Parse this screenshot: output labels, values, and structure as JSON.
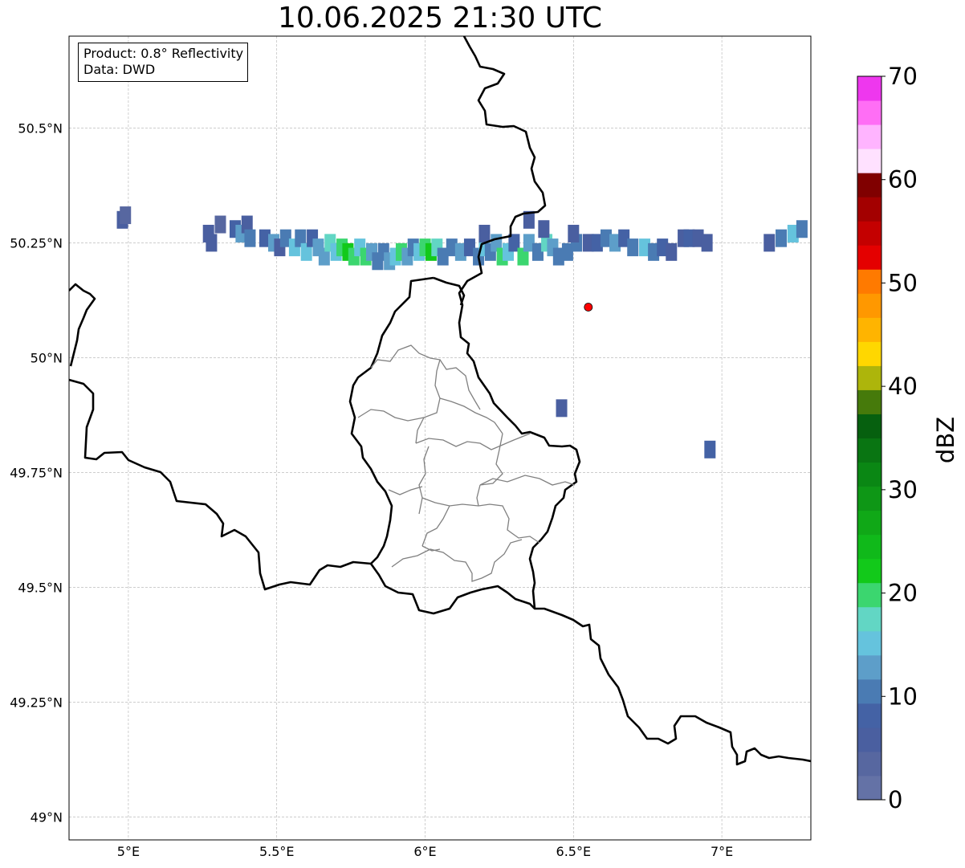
{
  "title": "10.06.2025 21:30 UTC",
  "info_box": {
    "product_line": "Product: 0.8° Reflectivity",
    "data_line": "Data: DWD"
  },
  "map": {
    "lon_range": [
      4.8,
      7.3
    ],
    "lat_range": [
      48.95,
      50.7
    ],
    "lon_ticks": [
      {
        "value": 5.0,
        "label": "5°E"
      },
      {
        "value": 5.5,
        "label": "5.5°E"
      },
      {
        "value": 6.0,
        "label": "6°E"
      },
      {
        "value": 6.5,
        "label": "6.5°E"
      },
      {
        "value": 7.0,
        "label": "7°E"
      }
    ],
    "lat_ticks": [
      {
        "value": 50.5,
        "label": "50.5°N"
      },
      {
        "value": 50.25,
        "label": "50.25°N"
      },
      {
        "value": 50.0,
        "label": "50°N"
      },
      {
        "value": 49.75,
        "label": "49.75°N"
      },
      {
        "value": 49.5,
        "label": "49.5°N"
      },
      {
        "value": 49.25,
        "label": "49.25°N"
      },
      {
        "value": 49.0,
        "label": "49°N"
      }
    ],
    "grid": true,
    "marker": {
      "lon": 6.55,
      "lat": 50.11,
      "color": "#ff0000"
    },
    "borders": {
      "color": "#000000"
    },
    "admin_borders": {
      "color": "#808080"
    }
  },
  "colorbar": {
    "label": "dBZ",
    "min": 0,
    "max": 70,
    "step": 2.5,
    "tick_labels": [
      "0",
      "10",
      "20",
      "30",
      "40",
      "50",
      "60",
      "70"
    ],
    "colors": [
      "#6472a6",
      "#5767a0",
      "#4a5fa0",
      "#4462a5",
      "#4a7bb3",
      "#5d9ec9",
      "#65c3dd",
      "#62d6c4",
      "#3bd66f",
      "#12c91a",
      "#10b91a",
      "#10a817",
      "#0e9716",
      "#0a8714",
      "#097512",
      "#06600f",
      "#467a0b",
      "#adb50b",
      "#ffd700",
      "#ffb400",
      "#ff9800",
      "#ff7a00",
      "#e40000",
      "#c40000",
      "#a30000",
      "#800000",
      "#ffe1ff",
      "#ffb4ff",
      "#ff6ef5",
      "#ee37ee"
    ]
  },
  "radar_data": {
    "description_units": "dBZ",
    "cells": [
      [
        4.98,
        50.3,
        5
      ],
      [
        4.99,
        50.31,
        3
      ],
      [
        5.27,
        50.27,
        5
      ],
      [
        5.28,
        50.25,
        6
      ],
      [
        5.31,
        50.29,
        4
      ],
      [
        5.36,
        50.28,
        9
      ],
      [
        5.38,
        50.27,
        14
      ],
      [
        5.4,
        50.29,
        6
      ],
      [
        5.41,
        50.26,
        12
      ],
      [
        5.46,
        50.26,
        8
      ],
      [
        5.49,
        50.25,
        13
      ],
      [
        5.51,
        50.24,
        7
      ],
      [
        5.53,
        50.26,
        11
      ],
      [
        5.56,
        50.24,
        15
      ],
      [
        5.58,
        50.26,
        10
      ],
      [
        5.6,
        50.23,
        16
      ],
      [
        5.62,
        50.26,
        9
      ],
      [
        5.64,
        50.24,
        14
      ],
      [
        5.66,
        50.22,
        13
      ],
      [
        5.68,
        50.25,
        18
      ],
      [
        5.7,
        50.23,
        17
      ],
      [
        5.72,
        50.24,
        22
      ],
      [
        5.74,
        50.23,
        24
      ],
      [
        5.76,
        50.22,
        20
      ],
      [
        5.78,
        50.24,
        16
      ],
      [
        5.8,
        50.22,
        21
      ],
      [
        5.82,
        50.23,
        14
      ],
      [
        5.84,
        50.21,
        12
      ],
      [
        5.86,
        50.23,
        10
      ],
      [
        5.88,
        50.21,
        14
      ],
      [
        5.9,
        50.22,
        17
      ],
      [
        5.92,
        50.23,
        21
      ],
      [
        5.94,
        50.22,
        13
      ],
      [
        5.96,
        50.24,
        11
      ],
      [
        5.98,
        50.23,
        15
      ],
      [
        6.0,
        50.24,
        22
      ],
      [
        6.02,
        50.23,
        24
      ],
      [
        6.04,
        50.24,
        18
      ],
      [
        6.06,
        50.22,
        12
      ],
      [
        6.09,
        50.24,
        10
      ],
      [
        6.12,
        50.23,
        14
      ],
      [
        6.15,
        50.24,
        9
      ],
      [
        6.18,
        50.22,
        12
      ],
      [
        6.2,
        50.24,
        16
      ],
      [
        6.22,
        50.23,
        11
      ],
      [
        6.24,
        50.25,
        13
      ],
      [
        6.26,
        50.22,
        21
      ],
      [
        6.28,
        50.23,
        15
      ],
      [
        6.3,
        50.25,
        9
      ],
      [
        6.33,
        50.22,
        22
      ],
      [
        6.35,
        50.25,
        14
      ],
      [
        6.38,
        50.23,
        11
      ],
      [
        6.41,
        50.25,
        18
      ],
      [
        6.43,
        50.24,
        13
      ],
      [
        6.45,
        50.22,
        10
      ],
      [
        6.48,
        50.23,
        12
      ],
      [
        6.51,
        50.25,
        10
      ],
      [
        6.55,
        50.25,
        7
      ],
      [
        6.58,
        50.25,
        9
      ],
      [
        6.61,
        50.26,
        11
      ],
      [
        6.64,
        50.25,
        13
      ],
      [
        6.67,
        50.26,
        9
      ],
      [
        6.7,
        50.24,
        12
      ],
      [
        6.74,
        50.24,
        15
      ],
      [
        6.77,
        50.23,
        10
      ],
      [
        6.8,
        50.24,
        8
      ],
      [
        6.83,
        50.23,
        7
      ],
      [
        6.87,
        50.26,
        6
      ],
      [
        6.89,
        50.26,
        9
      ],
      [
        6.92,
        50.26,
        5
      ],
      [
        6.95,
        50.25,
        6
      ],
      [
        7.16,
        50.25,
        7
      ],
      [
        7.2,
        50.26,
        12
      ],
      [
        7.24,
        50.27,
        16
      ],
      [
        7.27,
        50.28,
        10
      ],
      [
        6.2,
        50.27,
        6
      ],
      [
        6.35,
        50.3,
        5
      ],
      [
        6.4,
        50.28,
        7
      ],
      [
        6.5,
        50.27,
        5
      ],
      [
        6.46,
        49.89,
        5
      ],
      [
        6.96,
        49.8,
        8
      ]
    ]
  }
}
